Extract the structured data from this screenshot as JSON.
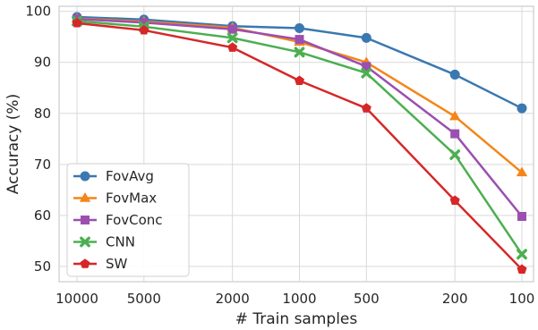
{
  "chart_data": {
    "type": "line",
    "xlabel": "# Train samples",
    "ylabel": "Accuracy (%)",
    "categories": [
      "10000",
      "5000",
      "2000",
      "1000",
      "500",
      "200",
      "100"
    ],
    "x": [
      10000,
      5000,
      2000,
      1000,
      500,
      200,
      100
    ],
    "x_scale": "log",
    "x_reversed": true,
    "ylim": [
      47,
      101
    ],
    "y_ticks": [
      50,
      60,
      70,
      80,
      90,
      100
    ],
    "grid": true,
    "legend_position": "lower-left",
    "series": [
      {
        "name": "FovAvg",
        "color": "#3a78b0",
        "marker": "circle",
        "values": [
          98.9,
          98.4,
          97.1,
          96.7,
          94.8,
          87.6,
          81.0
        ]
      },
      {
        "name": "FovMax",
        "color": "#f58518",
        "marker": "triangle",
        "values": [
          98.6,
          98.0,
          96.8,
          94.0,
          90.0,
          79.4,
          68.4
        ]
      },
      {
        "name": "FovConc",
        "color": "#9b4fb0",
        "marker": "square",
        "values": [
          98.5,
          97.8,
          96.5,
          94.5,
          89.2,
          76.0,
          59.8
        ]
      },
      {
        "name": "CNN",
        "color": "#4caf50",
        "marker": "x",
        "values": [
          98.1,
          97.0,
          94.8,
          92.0,
          87.9,
          71.9,
          52.4
        ]
      },
      {
        "name": "SW",
        "color": "#d62728",
        "marker": "pentagon",
        "values": [
          97.7,
          96.3,
          92.9,
          86.4,
          81.0,
          62.9,
          49.4
        ]
      }
    ]
  }
}
